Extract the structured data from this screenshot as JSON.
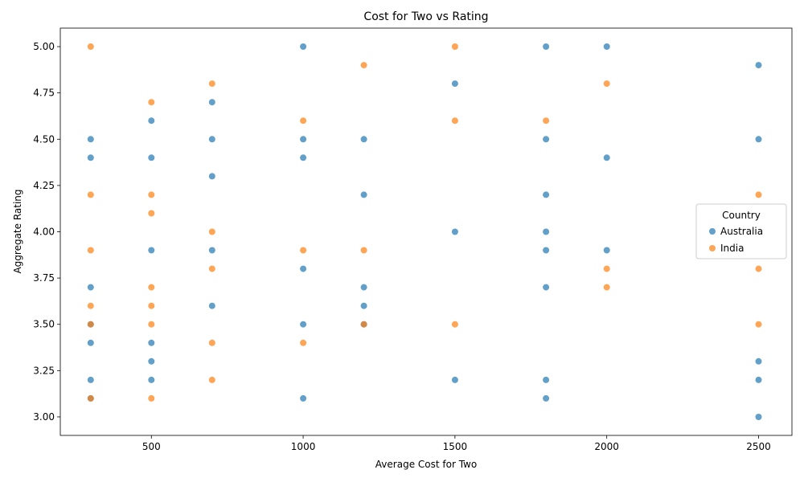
{
  "chart_data": {
    "type": "scatter",
    "title": "Cost for Two vs Rating",
    "xlabel": "Average Cost for Two",
    "ylabel": "Aggregate Rating",
    "xlim": [
      200,
      2610
    ],
    "ylim": [
      2.9,
      5.1
    ],
    "xticks": [
      500,
      1000,
      1500,
      2000,
      2500
    ],
    "yticks": [
      3.0,
      3.25,
      3.5,
      3.75,
      4.0,
      4.25,
      4.5,
      4.75,
      5.0
    ],
    "xtick_labels": [
      "500",
      "1000",
      "1500",
      "2000",
      "2500"
    ],
    "ytick_labels": [
      "3.00",
      "3.25",
      "3.50",
      "3.75",
      "4.00",
      "4.25",
      "4.50",
      "4.75",
      "5.00"
    ],
    "grid": false,
    "legend": {
      "title": "Country",
      "placement": "center-right"
    },
    "series": [
      {
        "name": "Australia",
        "color": "#1f77b4",
        "points": [
          [
            300,
            4.5
          ],
          [
            300,
            4.4
          ],
          [
            300,
            3.7
          ],
          [
            300,
            3.5
          ],
          [
            300,
            3.4
          ],
          [
            300,
            3.2
          ],
          [
            300,
            3.1
          ],
          [
            500,
            4.6
          ],
          [
            500,
            4.4
          ],
          [
            500,
            3.9
          ],
          [
            500,
            3.4
          ],
          [
            500,
            3.3
          ],
          [
            500,
            3.2
          ],
          [
            700,
            4.7
          ],
          [
            700,
            4.5
          ],
          [
            700,
            4.3
          ],
          [
            700,
            3.9
          ],
          [
            700,
            3.6
          ],
          [
            1000,
            5.0
          ],
          [
            1000,
            4.5
          ],
          [
            1000,
            4.4
          ],
          [
            1000,
            3.8
          ],
          [
            1000,
            3.5
          ],
          [
            1000,
            3.1
          ],
          [
            1200,
            4.5
          ],
          [
            1200,
            4.2
          ],
          [
            1200,
            3.7
          ],
          [
            1200,
            3.6
          ],
          [
            1200,
            3.5
          ],
          [
            1500,
            4.8
          ],
          [
            1500,
            4.0
          ],
          [
            1500,
            3.2
          ],
          [
            1800,
            5.0
          ],
          [
            1800,
            4.5
          ],
          [
            1800,
            4.2
          ],
          [
            1800,
            4.0
          ],
          [
            1800,
            3.9
          ],
          [
            1800,
            3.7
          ],
          [
            1800,
            3.2
          ],
          [
            1800,
            3.1
          ],
          [
            2000,
            5.0
          ],
          [
            2000,
            4.4
          ],
          [
            2000,
            3.9
          ],
          [
            2500,
            4.9
          ],
          [
            2500,
            4.5
          ],
          [
            2500,
            3.3
          ],
          [
            2500,
            3.2
          ],
          [
            2500,
            3.0
          ]
        ]
      },
      {
        "name": "India",
        "color": "#ff7f0e",
        "points": [
          [
            300,
            5.0
          ],
          [
            300,
            4.2
          ],
          [
            300,
            3.9
          ],
          [
            300,
            3.6
          ],
          [
            300,
            3.5
          ],
          [
            300,
            3.1
          ],
          [
            500,
            4.7
          ],
          [
            500,
            4.2
          ],
          [
            500,
            4.1
          ],
          [
            500,
            3.7
          ],
          [
            500,
            3.6
          ],
          [
            500,
            3.5
          ],
          [
            500,
            3.1
          ],
          [
            700,
            4.8
          ],
          [
            700,
            4.0
          ],
          [
            700,
            3.8
          ],
          [
            700,
            3.4
          ],
          [
            700,
            3.2
          ],
          [
            1000,
            4.6
          ],
          [
            1000,
            3.9
          ],
          [
            1000,
            3.4
          ],
          [
            1200,
            4.9
          ],
          [
            1200,
            3.9
          ],
          [
            1200,
            3.5
          ],
          [
            1500,
            5.0
          ],
          [
            1500,
            4.6
          ],
          [
            1500,
            3.5
          ],
          [
            1800,
            4.6
          ],
          [
            2000,
            4.8
          ],
          [
            2000,
            3.8
          ],
          [
            2000,
            3.7
          ],
          [
            2500,
            4.2
          ],
          [
            2500,
            3.8
          ],
          [
            2500,
            3.5
          ]
        ]
      }
    ]
  }
}
